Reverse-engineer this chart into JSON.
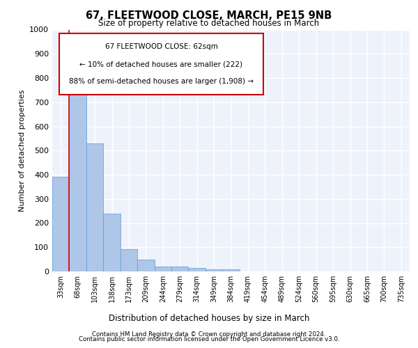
{
  "title1": "67, FLEETWOOD CLOSE, MARCH, PE15 9NB",
  "title2": "Size of property relative to detached houses in March",
  "xlabel": "Distribution of detached houses by size in March",
  "ylabel": "Number of detached properties",
  "categories": [
    "33sqm",
    "68sqm",
    "103sqm",
    "138sqm",
    "173sqm",
    "209sqm",
    "244sqm",
    "279sqm",
    "314sqm",
    "349sqm",
    "384sqm",
    "419sqm",
    "454sqm",
    "489sqm",
    "524sqm",
    "560sqm",
    "595sqm",
    "630sqm",
    "665sqm",
    "700sqm",
    "735sqm"
  ],
  "values": [
    390,
    830,
    530,
    240,
    93,
    50,
    20,
    20,
    13,
    8,
    8,
    0,
    0,
    0,
    0,
    0,
    0,
    0,
    0,
    0,
    0
  ],
  "bar_color": "#aec6e8",
  "bar_edge_color": "#5b9bd5",
  "annotation_title": "67 FLEETWOOD CLOSE: 62sqm",
  "annotation_line1": "← 10% of detached houses are smaller (222)",
  "annotation_line2": "88% of semi-detached houses are larger (1,908) →",
  "box_color": "#cc0000",
  "ylim": [
    0,
    1000
  ],
  "yticks": [
    0,
    100,
    200,
    300,
    400,
    500,
    600,
    700,
    800,
    900,
    1000
  ],
  "footer1": "Contains HM Land Registry data © Crown copyright and database right 2024.",
  "footer2": "Contains public sector information licensed under the Open Government Licence v3.0.",
  "bg_color": "#eef3fb",
  "grid_color": "#ffffff"
}
